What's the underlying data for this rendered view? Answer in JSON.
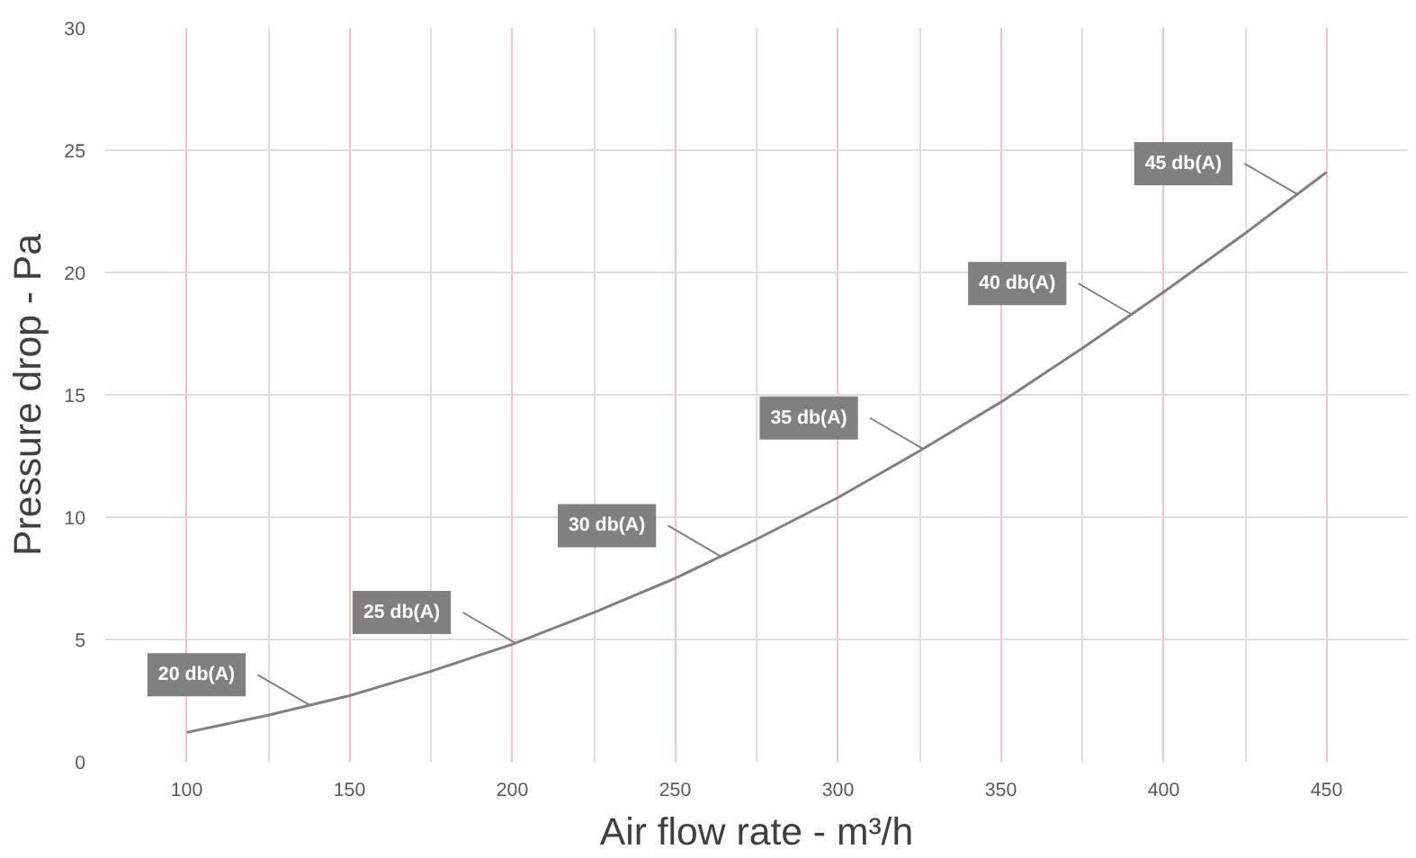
{
  "chart_data": {
    "type": "line",
    "xlabel": "Air flow rate - m³/h",
    "ylabel": "Pressure drop - Pa",
    "x": [
      100,
      125,
      150,
      175,
      200,
      225,
      250,
      275,
      300,
      325,
      350,
      375,
      400,
      425,
      450
    ],
    "series": [
      {
        "color": "#808080",
        "values": [
          1.2,
          1.9,
          2.7,
          3.7,
          4.8,
          6.1,
          7.5,
          9.1,
          10.8,
          12.7,
          14.7,
          16.9,
          19.2,
          21.6,
          24.1
        ]
      }
    ],
    "xlim": [
      75,
      475
    ],
    "ylim": [
      0,
      30
    ],
    "xticks": [
      100,
      150,
      200,
      250,
      300,
      350,
      400,
      450
    ],
    "yticks": [
      0,
      5,
      10,
      15,
      20,
      25,
      30
    ],
    "grid": true,
    "marker": "none",
    "line_style": "solid",
    "annotations": [
      {
        "text": "20 db(A)",
        "x": 138,
        "y": 2.3
      },
      {
        "text": "25 db(A)",
        "x": 201,
        "y": 4.85
      },
      {
        "text": "30 db(A)",
        "x": 264,
        "y": 8.4
      },
      {
        "text": "35 db(A)",
        "x": 326,
        "y": 12.8
      },
      {
        "text": "40 db(A)",
        "x": 390,
        "y": 18.3
      },
      {
        "text": "45 db(A)",
        "x": 441,
        "y": 23.2
      }
    ]
  }
}
